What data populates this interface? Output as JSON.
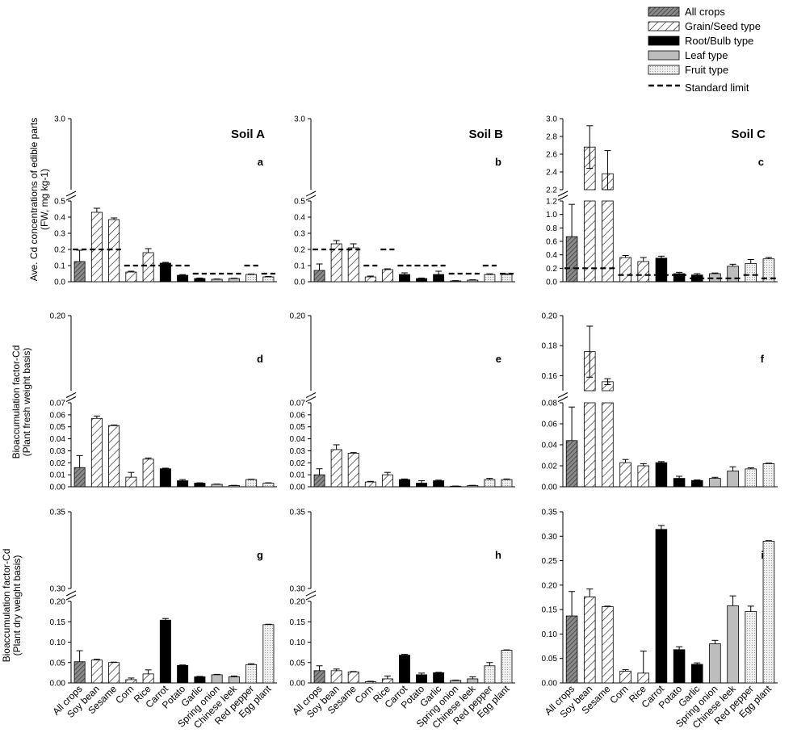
{
  "figure": {
    "legend": [
      {
        "label": "All crops",
        "pattern": "dark-hatch"
      },
      {
        "label": "Grain/Seed type",
        "pattern": "hatch"
      },
      {
        "label": "Root/Bulb type",
        "pattern": "solid-black"
      },
      {
        "label": "Leaf type",
        "pattern": "gray"
      },
      {
        "label": "Fruit type",
        "pattern": "dotted"
      },
      {
        "label": "Standard limit",
        "pattern": "dashed-line"
      }
    ],
    "row_ylabels": [
      [
        "Ave. Cd concentrations of edible parts",
        "(FW, mg kg-1)"
      ],
      [
        "Bioaccumulation factor-Cd",
        "(Plant fresh weight basis)"
      ],
      [
        "Bioaccumulation factor-Cd",
        "(Plant dry weight basis)"
      ]
    ]
  },
  "chart_data": [
    {
      "type": "bar",
      "panel": "a",
      "soil": "Soil A",
      "row": 0,
      "col": 0,
      "categories": [
        "All crops",
        "Soy bean",
        "Sesame",
        "Corn",
        "Rice",
        "Carrot",
        "Potato",
        "Garlic",
        "Spring onion",
        "Chinese leek",
        "Red pepper",
        "Egg plant"
      ],
      "values": [
        0.125,
        0.43,
        0.385,
        0.06,
        0.18,
        0.115,
        0.04,
        0.02,
        0.015,
        0.02,
        0.045,
        0.03
      ],
      "errors": [
        0.07,
        0.025,
        0.01,
        0.005,
        0.025,
        0.005,
        0.004,
        0.003,
        0.002,
        0.002,
        0.003,
        0.003
      ],
      "standard_limit": [
        0.2,
        0.2,
        0.2,
        0.1,
        0.1,
        0.1,
        0.1,
        0.05,
        0.05,
        0.05,
        0.1,
        0.05
      ],
      "lower_range": [
        0,
        0.5
      ],
      "lower_ticks": [
        "0.0",
        "0.1",
        "0.2",
        "0.3",
        "0.4",
        "0.5"
      ],
      "upper_range": [
        2.9,
        3.0
      ],
      "upper_ticks": [
        "3.0"
      ]
    },
    {
      "type": "bar",
      "panel": "b",
      "soil": "Soil B",
      "row": 0,
      "col": 1,
      "categories": [
        "All crops",
        "Soy bean",
        "Sesame",
        "Corn",
        "Rice",
        "Carrot",
        "Potato",
        "Garlic",
        "Spring onion",
        "Chinese leek",
        "Red pepper",
        "Egg plant"
      ],
      "values": [
        0.07,
        0.235,
        0.21,
        0.03,
        0.075,
        0.045,
        0.02,
        0.045,
        0.005,
        0.01,
        0.045,
        0.045
      ],
      "errors": [
        0.04,
        0.02,
        0.025,
        0.005,
        0.005,
        0.01,
        0.003,
        0.02,
        0.002,
        0.002,
        0.004,
        0.004
      ],
      "standard_limit": [
        0.2,
        0.2,
        0.2,
        0.1,
        0.2,
        0.1,
        0.1,
        0.1,
        0.05,
        0.05,
        0.1,
        0.05
      ],
      "lower_range": [
        0,
        0.5
      ],
      "lower_ticks": [
        "0.0",
        "0.1",
        "0.2",
        "0.3",
        "0.4",
        "0.5"
      ],
      "upper_range": [
        2.9,
        3.0
      ],
      "upper_ticks": [
        "3.0"
      ]
    },
    {
      "type": "bar",
      "panel": "c",
      "soil": "Soil C",
      "row": 0,
      "col": 2,
      "categories": [
        "All crops",
        "Soy bean",
        "Sesame",
        "Corn",
        "Rice",
        "Carrot",
        "Potato",
        "Garlic",
        "Spring onion",
        "Chinese leek",
        "Red pepper",
        "Egg plant"
      ],
      "values": [
        0.67,
        2.68,
        2.38,
        0.36,
        0.3,
        0.35,
        0.12,
        0.1,
        0.12,
        0.23,
        0.27,
        0.34
      ],
      "errors": [
        0.48,
        0.24,
        0.26,
        0.03,
        0.06,
        0.03,
        0.02,
        0.02,
        0.01,
        0.03,
        0.06,
        0.02
      ],
      "standard_limit": [
        0.2,
        0.2,
        0.2,
        0.1,
        0.1,
        0.1,
        0.1,
        0.05,
        0.05,
        0.05,
        0.1,
        0.05
      ],
      "lower_range": [
        0,
        1.2
      ],
      "lower_ticks": [
        "0.0",
        "0.2",
        "0.4",
        "0.6",
        "0.8",
        "1.0",
        "1.2"
      ],
      "upper_range": [
        2.2,
        3.0
      ],
      "upper_ticks": [
        "2.2",
        "2.4",
        "2.6",
        "2.8",
        "3.0"
      ]
    },
    {
      "type": "bar",
      "panel": "d",
      "row": 1,
      "col": 0,
      "categories": [
        "All crops",
        "Soy bean",
        "Sesame",
        "Corn",
        "Rice",
        "Carrot",
        "Potato",
        "Garlic",
        "Spring onion",
        "Chinese leek",
        "Red pepper",
        "Egg plant"
      ],
      "values": [
        0.016,
        0.057,
        0.051,
        0.008,
        0.023,
        0.015,
        0.005,
        0.003,
        0.002,
        0.001,
        0.006,
        0.003
      ],
      "errors": [
        0.01,
        0.002,
        0.0005,
        0.004,
        0.001,
        0.0005,
        0.001,
        0.0003,
        0.0002,
        0.0002,
        0.0003,
        0.0003
      ],
      "lower_range": [
        0,
        0.07
      ],
      "lower_ticks": [
        "0.00",
        "0.01",
        "0.02",
        "0.03",
        "0.04",
        "0.05",
        "0.06",
        "0.07"
      ],
      "upper_range": [
        0.19,
        0.2
      ],
      "upper_ticks": [
        "0.20"
      ]
    },
    {
      "type": "bar",
      "panel": "e",
      "row": 1,
      "col": 1,
      "categories": [
        "All crops",
        "Soy bean",
        "Sesame",
        "Corn",
        "Rice",
        "Carrot",
        "Potato",
        "Garlic",
        "Spring onion",
        "Chinese leek",
        "Red pepper",
        "Egg plant"
      ],
      "values": [
        0.01,
        0.031,
        0.028,
        0.004,
        0.01,
        0.006,
        0.003,
        0.005,
        0.0005,
        0.001,
        0.006,
        0.006
      ],
      "errors": [
        0.005,
        0.004,
        0.0005,
        0.0005,
        0.002,
        0.0005,
        0.002,
        0.0005,
        0.0001,
        0.0002,
        0.001,
        0.0005
      ],
      "lower_range": [
        0,
        0.07
      ],
      "lower_ticks": [
        "0.00",
        "0.01",
        "0.02",
        "0.03",
        "0.04",
        "0.05",
        "0.06",
        "0.07"
      ],
      "upper_range": [
        0.19,
        0.2
      ],
      "upper_ticks": [
        "0.20"
      ]
    },
    {
      "type": "bar",
      "panel": "f",
      "row": 1,
      "col": 2,
      "categories": [
        "All crops",
        "Soy bean",
        "Sesame",
        "Corn",
        "Rice",
        "Carrot",
        "Potato",
        "Garlic",
        "Spring onion",
        "Chinese leek",
        "Red pepper",
        "Egg plant"
      ],
      "values": [
        0.044,
        0.176,
        0.156,
        0.023,
        0.02,
        0.023,
        0.008,
        0.006,
        0.008,
        0.015,
        0.017,
        0.022
      ],
      "errors": [
        0.032,
        0.017,
        0.002,
        0.003,
        0.002,
        0.001,
        0.002,
        0.0005,
        0.001,
        0.004,
        0.001,
        0.0005
      ],
      "lower_range": [
        0,
        0.08
      ],
      "lower_ticks": [
        "0.00",
        "0.02",
        "0.04",
        "0.06",
        "0.08"
      ],
      "upper_range": [
        0.15,
        0.2
      ],
      "upper_ticks": [
        "0.16",
        "0.18",
        "0.20"
      ]
    },
    {
      "type": "bar",
      "panel": "g",
      "row": 2,
      "col": 0,
      "categories": [
        "All crops",
        "Soy bean",
        "Sesame",
        "Corn",
        "Rice",
        "Carrot",
        "Potato",
        "Garlic",
        "Spring onion",
        "Chinese leek",
        "Red pepper",
        "Egg plant"
      ],
      "values": [
        0.052,
        0.056,
        0.05,
        0.008,
        0.022,
        0.154,
        0.043,
        0.015,
        0.02,
        0.015,
        0.045,
        0.143
      ],
      "errors": [
        0.027,
        0.002,
        0.001,
        0.004,
        0.01,
        0.004,
        0.001,
        0.001,
        0.001,
        0.002,
        0.002,
        0.001
      ],
      "lower_range": [
        0,
        0.2
      ],
      "lower_ticks": [
        "0.00",
        "0.05",
        "0.10",
        "0.15",
        "0.20"
      ],
      "upper_range": [
        0.3,
        0.35
      ],
      "upper_ticks": [
        "0.30",
        "0.35"
      ]
    },
    {
      "type": "bar",
      "panel": "h",
      "row": 2,
      "col": 1,
      "categories": [
        "All crops",
        "Soy bean",
        "Sesame",
        "Corn",
        "Rice",
        "Carrot",
        "Potato",
        "Garlic",
        "Spring onion",
        "Chinese leek",
        "Red pepper",
        "Egg plant"
      ],
      "values": [
        0.03,
        0.03,
        0.027,
        0.003,
        0.01,
        0.068,
        0.02,
        0.025,
        0.006,
        0.01,
        0.042,
        0.08
      ],
      "errors": [
        0.012,
        0.004,
        0.001,
        0.001,
        0.007,
        0.002,
        0.004,
        0.001,
        0.001,
        0.005,
        0.008,
        0.001
      ],
      "lower_range": [
        0,
        0.2
      ],
      "lower_ticks": [
        "0.00",
        "0.05",
        "0.10",
        "0.15",
        "0.20"
      ],
      "upper_range": [
        0.3,
        0.35
      ],
      "upper_ticks": [
        "0.30",
        "0.35"
      ]
    },
    {
      "type": "bar",
      "panel": "i",
      "row": 2,
      "col": 2,
      "categories": [
        "All crops",
        "Soy bean",
        "Sesame",
        "Corn",
        "Rice",
        "Carrot",
        "Potato",
        "Garlic",
        "Spring onion",
        "Chinese leek",
        "Red pepper",
        "Egg plant"
      ],
      "values": [
        0.137,
        0.176,
        0.156,
        0.024,
        0.02,
        0.314,
        0.068,
        0.038,
        0.08,
        0.158,
        0.146,
        0.29
      ],
      "errors": [
        0.05,
        0.016,
        0.001,
        0.003,
        0.045,
        0.008,
        0.006,
        0.003,
        0.007,
        0.02,
        0.011,
        0.001
      ],
      "single_axis": true,
      "lower_range": [
        0,
        0.35
      ],
      "lower_ticks": [
        "0.00",
        "0.05",
        "0.10",
        "0.15",
        "0.20",
        "0.25",
        "0.30",
        "0.35"
      ]
    }
  ]
}
